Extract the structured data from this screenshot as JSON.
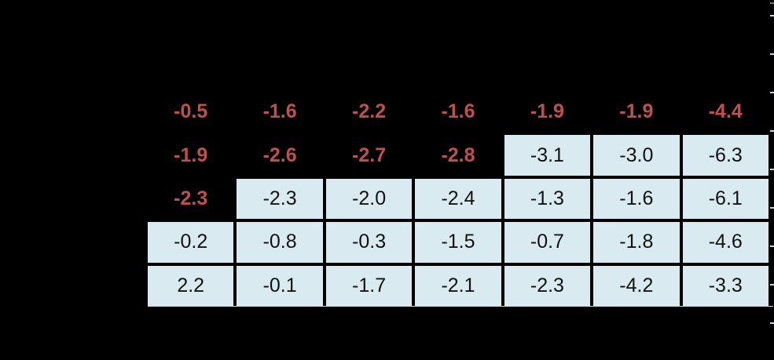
{
  "chart_data": {
    "type": "table",
    "title": "",
    "columns": 7,
    "rows": [
      {
        "values": [
          "-0.5",
          "-1.6",
          "-2.2",
          "-1.6",
          "-1.9",
          "-1.9",
          "-4.4"
        ],
        "filled_from_col": 7
      },
      {
        "values": [
          "-1.9",
          "-2.6",
          "-2.7",
          "-2.8",
          "-3.1",
          "-3.0",
          "-6.3"
        ],
        "filled_from_col": 4
      },
      {
        "values": [
          "-2.3",
          "-2.3",
          "-2.0",
          "-2.4",
          "-1.3",
          "-1.6",
          "-6.1"
        ],
        "filled_from_col": 1
      },
      {
        "values": [
          "-0.2",
          "-0.8",
          "-0.3",
          "-1.5",
          "-0.7",
          "-1.8",
          "-4.6"
        ],
        "filled_from_col": 0
      },
      {
        "values": [
          "2.2",
          "-0.1",
          "-1.7",
          "-2.1",
          "-2.3",
          "-4.2",
          "-3.3"
        ],
        "filled_from_col": 0
      }
    ],
    "layout_hints": {
      "grid": "black gridlines between filled cells",
      "right_axis_ticks": 10,
      "baseline_under_table": true
    },
    "colors": {
      "background": "#000000",
      "highlight_text": "#c0504d",
      "cell_fill": "#daeaf1",
      "cell_text": "#121212",
      "tick_mark": "#c9d3d8",
      "baseline": "#ccd6db"
    }
  }
}
